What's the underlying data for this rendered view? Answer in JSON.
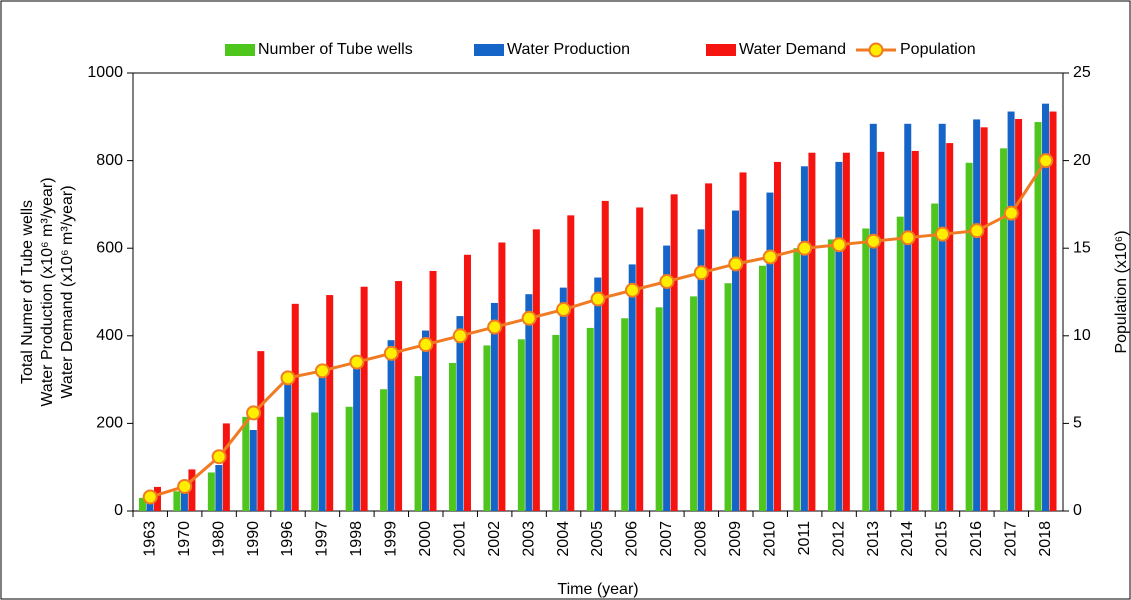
{
  "chart_data": {
    "type": "bar",
    "x_label": "Time (year)",
    "y_label": [
      "Total Numer of Tube wells",
      "Water Production (x10⁶ m³/year)",
      "Water Demand (x10⁶ m³/year)"
    ],
    "y2_label": "Population (x10⁶)",
    "categories": [
      "1963",
      "1970",
      "1980",
      "1990",
      "1996",
      "1997",
      "1998",
      "1999",
      "2000",
      "2001",
      "2002",
      "2003",
      "2004",
      "2005",
      "2006",
      "2007",
      "2008",
      "2009",
      "2010",
      "2011",
      "2012",
      "2013",
      "2014",
      "2015",
      "2016",
      "2017",
      "2018"
    ],
    "series": [
      {
        "name": "Number of Tube wells",
        "color": "#4fc61e",
        "type": "bar",
        "values": [
          30,
          45,
          88,
          215,
          215,
          225,
          238,
          278,
          308,
          338,
          378,
          392,
          402,
          418,
          440,
          465,
          490,
          520,
          560,
          600,
          620,
          645,
          672,
          702,
          795,
          828,
          888
        ]
      },
      {
        "name": "Water Production",
        "color": "#1565c8",
        "type": "bar",
        "values": [
          40,
          55,
          105,
          185,
          310,
          325,
          340,
          390,
          412,
          445,
          475,
          495,
          510,
          533,
          563,
          606,
          643,
          686,
          727,
          787,
          797,
          884,
          884,
          884,
          894,
          912,
          930
        ]
      },
      {
        "name": "Water Demand",
        "color": "#f5140f",
        "type": "bar",
        "values": [
          55,
          95,
          200,
          365,
          473,
          493,
          512,
          525,
          548,
          585,
          613,
          643,
          675,
          708,
          693,
          723,
          748,
          773,
          797,
          818,
          818,
          820,
          822,
          840,
          876,
          895,
          912
        ]
      },
      {
        "name": "Population",
        "color": "#f07b22",
        "marker_color": "#ffee00",
        "type": "line",
        "axis": "y2",
        "values": [
          0.8,
          1.4,
          3.1,
          5.6,
          7.6,
          8.0,
          8.5,
          9.0,
          9.5,
          10.0,
          10.5,
          11.0,
          11.5,
          12.1,
          12.6,
          13.1,
          13.6,
          14.1,
          14.5,
          15.0,
          15.2,
          15.4,
          15.6,
          15.8,
          16.0,
          17.0,
          20.0
        ]
      }
    ],
    "ylim": [
      0,
      1000
    ],
    "yticks": [
      0,
      200,
      400,
      600,
      800,
      1000
    ],
    "y2lim": [
      0,
      25
    ],
    "y2ticks": [
      0,
      5,
      10,
      15,
      20,
      25
    ],
    "grid": false,
    "legend": "top"
  }
}
